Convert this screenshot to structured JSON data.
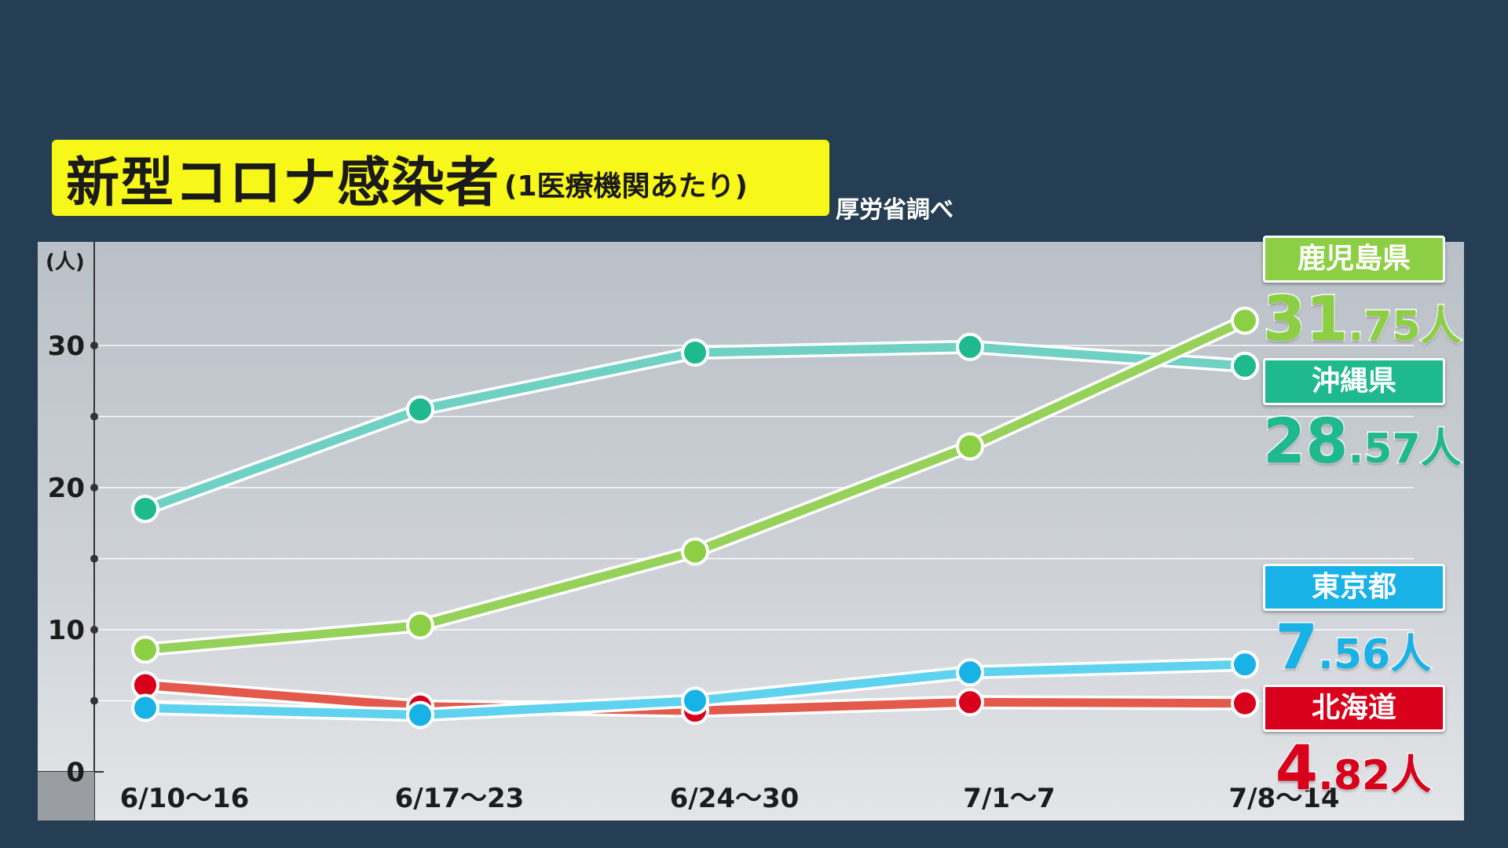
{
  "title": "新型コロナ感染者",
  "subtitle": "(1医療機関あたり)",
  "source": "厚労省調べ",
  "chart_data": {
    "type": "line",
    "ylabel": "(人)",
    "ylim": [
      0,
      35
    ],
    "yticks": [
      "0",
      "10",
      "20",
      "30"
    ],
    "categories": [
      "6/10〜16",
      "6/17〜23",
      "6/24〜30",
      "7/1〜7",
      "7/8〜14"
    ],
    "grid": true,
    "series": [
      {
        "name": "沖縄県",
        "color": "#1fb98f",
        "line_color": "#6fd1c3",
        "values": [
          18.5,
          25.5,
          29.5,
          29.9,
          28.57
        ]
      },
      {
        "name": "鹿児島県",
        "color": "#8ccf44",
        "line_color": "#96d15a",
        "values": [
          8.6,
          10.3,
          15.5,
          22.9,
          31.75
        ]
      },
      {
        "name": "北海道",
        "color": "#d8001a",
        "line_color": "#e3594b",
        "values": [
          6.1,
          4.6,
          4.3,
          4.9,
          4.82
        ]
      },
      {
        "name": "東京都",
        "color": "#18b2e6",
        "line_color": "#5fd2f0",
        "values": [
          4.5,
          4.0,
          5.0,
          7.0,
          7.56
        ]
      }
    ],
    "callouts": [
      {
        "name": "鹿児島県",
        "int": "31",
        "dec": ".75",
        "unit": "人",
        "badge_color": "#8ccf44",
        "value_color": "#8ccf44"
      },
      {
        "name": "沖縄県",
        "int": "28",
        "dec": ".57",
        "unit": "人",
        "badge_color": "#1fb98f",
        "value_color": "#1fb98f"
      },
      {
        "name": "東京都",
        "int": "7",
        "dec": ".56",
        "unit": "人",
        "badge_color": "#18b2e6",
        "value_color": "#18b2e6"
      },
      {
        "name": "北海道",
        "int": "4",
        "dec": ".82",
        "unit": "人",
        "badge_color": "#d8001a",
        "value_color": "#d8001a"
      }
    ]
  }
}
